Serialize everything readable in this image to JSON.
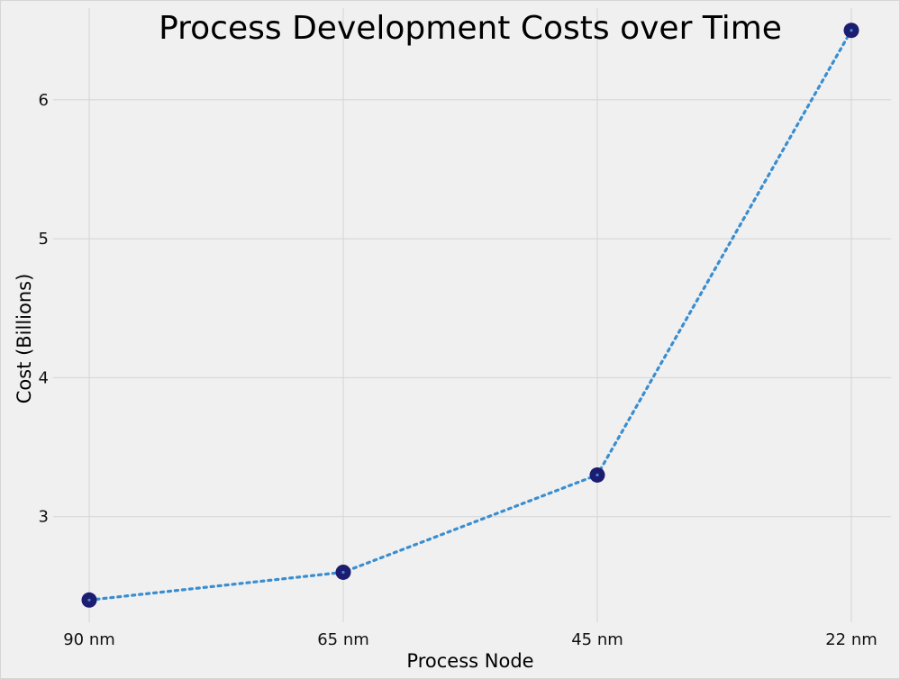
{
  "chart_data": {
    "type": "line",
    "title": "Process Development Costs over Time",
    "xlabel": "Process Node",
    "ylabel": "Cost (Billions)",
    "categories": [
      "90 nm",
      "65 nm",
      "45 nm",
      "22 nm"
    ],
    "series": [
      {
        "values": [
          2.4,
          2.6,
          3.3,
          6.5
        ],
        "line_color": "#3a8ed0",
        "marker_color": "#1c1c70",
        "line_style": "dotted",
        "marker": "circle"
      }
    ],
    "yticks": [
      3,
      4,
      5,
      6
    ],
    "ytick_labels": [
      "3",
      "4",
      "5",
      "6"
    ],
    "ylim": [
      2.24,
      6.66
    ],
    "grid": true,
    "legend": "none",
    "background": "#f0f0f0",
    "grid_color": "#d4d4d4"
  }
}
